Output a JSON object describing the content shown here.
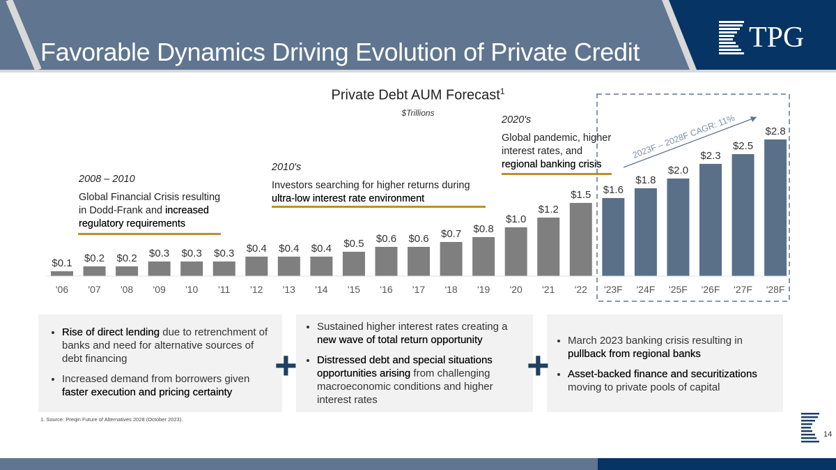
{
  "header": {
    "title": "Favorable Dynamics Driving Evolution of Private Credit",
    "logo_text": "TPG"
  },
  "colors": {
    "header_band": "#5f7590",
    "navy": "#053465",
    "historical_bar": "#7f7f7f",
    "forecast_bar": "#5a7089",
    "annotation_underline": "#b8912b"
  },
  "annotations": [
    {
      "heading": "2008 – 2010",
      "text_plain": "Global Financial Crisis resulting in Dodd-Frank and ",
      "text_bold": "increased regulatory requirements"
    },
    {
      "heading": "2010's",
      "text_plain": "Investors searching for higher returns during ",
      "text_bold": "ultra-low interest rate environment"
    },
    {
      "heading": "2020's",
      "text_plain": "Global pandemic, higher interest rates, and ",
      "text_bold": "regional banking crisis"
    }
  ],
  "chart_data": {
    "type": "bar",
    "title": "Private Debt AUM Forecast",
    "title_superscript": "1",
    "subtitle": "$Trillions",
    "categories": [
      "'06",
      "'07",
      "'08",
      "'09",
      "'10",
      "'11",
      "'12",
      "'13",
      "'14",
      "'15",
      "'16",
      "'17",
      "'18",
      "'19",
      "'20",
      "'21",
      "'22",
      "'23F",
      "'24F",
      "'25F",
      "'26F",
      "'27F",
      "'28F"
    ],
    "values": [
      0.1,
      0.2,
      0.2,
      0.3,
      0.3,
      0.3,
      0.4,
      0.4,
      0.4,
      0.5,
      0.6,
      0.6,
      0.7,
      0.8,
      1.0,
      1.2,
      1.5,
      1.6,
      1.8,
      2.0,
      2.3,
      2.5,
      2.8
    ],
    "data_labels": [
      "$0.1",
      "$0.2",
      "$0.2",
      "$0.3",
      "$0.3",
      "$0.3",
      "$0.4",
      "$0.4",
      "$0.4",
      "$0.5",
      "$0.6",
      "$0.6",
      "$0.7",
      "$0.8",
      "$1.0",
      "$1.2",
      "$1.5",
      "$1.6",
      "$1.8",
      "$2.0",
      "$2.3",
      "$2.5",
      "$2.8"
    ],
    "forecast_start_index": 17,
    "ylim": [
      0,
      3.0
    ],
    "grid": false,
    "cagr_annotation": "2023F – 2028F CAGR: 11%"
  },
  "boxes": [
    {
      "bullets": [
        [
          {
            "t": "Rise of direct lending",
            "b": true
          },
          {
            "t": " due to retrenchment of banks and need for alternative sources of debt financing",
            "b": false
          }
        ],
        [
          {
            "t": "Increased demand from borrowers given ",
            "b": false
          },
          {
            "t": "faster execution and pricing certainty",
            "b": true
          }
        ]
      ]
    },
    {
      "bullets": [
        [
          {
            "t": "Sustained higher interest rates creating a ",
            "b": false
          },
          {
            "t": "new wave of total return opportunity",
            "b": true
          }
        ],
        [
          {
            "t": "Distressed debt and special situations opportunities arising",
            "b": true
          },
          {
            "t": " from challenging macroeconomic conditions and higher interest rates",
            "b": false
          }
        ]
      ]
    },
    {
      "bullets": [
        [
          {
            "t": "March 2023 banking crisis resulting in ",
            "b": false
          },
          {
            "t": "pullback from regional banks",
            "b": true
          }
        ],
        [
          {
            "t": "Asset-backed finance and securitizations",
            "b": true
          },
          {
            "t": " moving to private pools of capital",
            "b": false
          }
        ]
      ]
    }
  ],
  "plus_symbol": "+",
  "footnote": "1. Source: Preqin Future of Alternatives 2028 (October 2023).",
  "page_number": "14"
}
